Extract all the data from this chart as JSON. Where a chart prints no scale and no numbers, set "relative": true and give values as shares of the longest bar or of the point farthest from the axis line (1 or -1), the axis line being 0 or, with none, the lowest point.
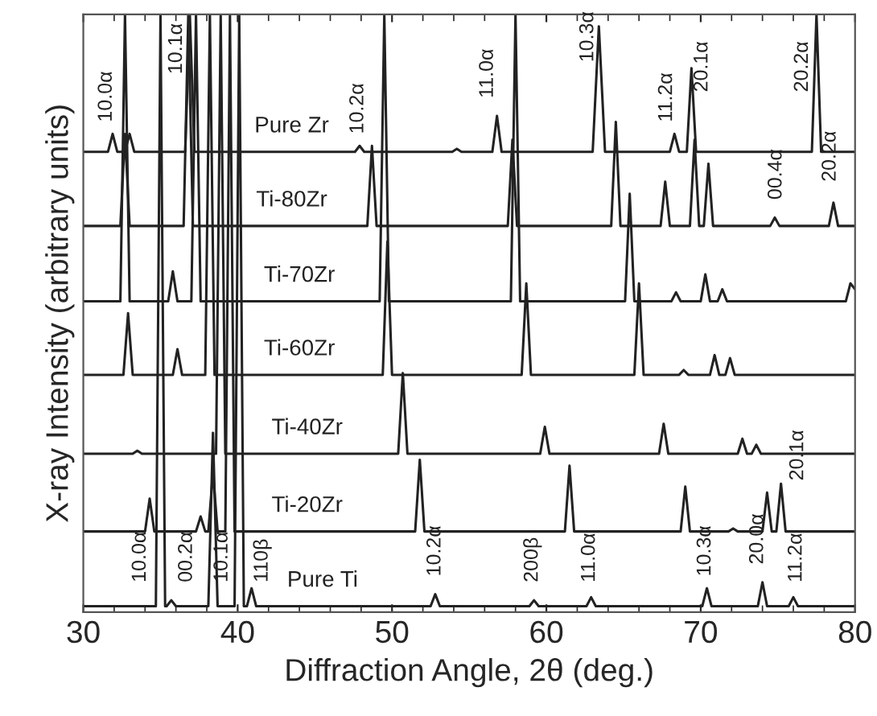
{
  "chart_data": {
    "type": "line",
    "relative": true,
    "xlabel": "Diffraction Angle, 2θ (deg.)",
    "ylabel": "X-ray Intensity (arbitrary units)",
    "xlim": [
      30,
      80
    ],
    "xticks": [
      30,
      40,
      50,
      60,
      70,
      80
    ],
    "tick_labels": "x",
    "grid": false,
    "legend": false,
    "marker": "none",
    "line_style": "solid",
    "series": [
      {
        "name": "Pure Zr",
        "color": "#222222",
        "x": [
          30,
          31.6,
          31.9,
          32.2,
          32.7,
          33.0,
          33.3,
          36.6,
          36.9,
          37.2,
          47.6,
          47.9,
          48.2,
          53.9,
          54.2,
          54.5,
          56.5,
          56.8,
          57.1,
          63.0,
          63.4,
          63.8,
          68.0,
          68.3,
          68.6,
          69.1,
          69.4,
          69.7,
          77.2,
          77.5,
          77.8,
          80
        ],
        "values": [
          0.77,
          0.77,
          0.8,
          0.77,
          0.77,
          0.8,
          0.77,
          0.77,
          1.0,
          0.77,
          0.77,
          0.78,
          0.77,
          0.77,
          0.775,
          0.77,
          0.77,
          0.83,
          0.77,
          0.77,
          0.98,
          0.77,
          0.77,
          0.8,
          0.77,
          0.77,
          0.91,
          0.77,
          0.77,
          1.0,
          0.77,
          0.77
        ]
      },
      {
        "name": "Ti-80Zr",
        "color": "#222222",
        "x": [
          30,
          32.4,
          32.7,
          33.0,
          36.5,
          36.8,
          37.1,
          48.4,
          48.7,
          49.0,
          57.5,
          57.8,
          58.1,
          64.2,
          64.5,
          64.8,
          67.4,
          67.7,
          68.0,
          69.3,
          69.6,
          69.9,
          70.2,
          70.5,
          70.8,
          74.5,
          74.8,
          75.1,
          78.3,
          78.6,
          78.9,
          80
        ],
        "values": [
          0.646,
          0.646,
          0.8,
          0.646,
          0.646,
          1.0,
          0.646,
          0.646,
          0.78,
          0.646,
          0.646,
          0.79,
          0.646,
          0.646,
          0.82,
          0.646,
          0.646,
          0.72,
          0.646,
          0.646,
          0.79,
          0.646,
          0.646,
          0.75,
          0.646,
          0.646,
          0.66,
          0.646,
          0.646,
          0.685,
          0.646,
          0.646
        ]
      },
      {
        "name": "Ti-70Zr",
        "color": "#222222",
        "x": [
          30,
          32.4,
          32.7,
          33.0,
          35.5,
          35.8,
          36.1,
          37.0,
          37.3,
          37.6,
          49.2,
          49.5,
          49.8,
          57.7,
          58.0,
          58.3,
          65.1,
          65.4,
          65.7,
          68.1,
          68.4,
          68.7,
          70.0,
          70.3,
          70.6,
          71.1,
          71.4,
          71.7,
          79.4,
          79.7,
          80
        ],
        "values": [
          0.52,
          0.52,
          1.0,
          0.52,
          0.52,
          0.57,
          0.52,
          0.52,
          1.0,
          0.52,
          0.52,
          1.0,
          0.52,
          0.52,
          1.0,
          0.52,
          0.52,
          0.7,
          0.52,
          0.52,
          0.535,
          0.52,
          0.52,
          0.565,
          0.52,
          0.52,
          0.54,
          0.52,
          0.52,
          0.55,
          0.54
        ]
      },
      {
        "name": "Ti-60Zr",
        "color": "#222222",
        "x": [
          30,
          32.6,
          32.9,
          33.2,
          35.8,
          36.1,
          36.4,
          37.9,
          38.2,
          38.5,
          49.4,
          49.7,
          50.0,
          58.4,
          58.7,
          59.0,
          65.7,
          66.0,
          66.3,
          68.6,
          68.9,
          69.2,
          70.6,
          70.9,
          71.2,
          71.6,
          71.9,
          72.2,
          80
        ],
        "values": [
          0.397,
          0.397,
          0.5,
          0.397,
          0.397,
          0.44,
          0.397,
          0.397,
          1.0,
          0.397,
          0.397,
          0.62,
          0.397,
          0.397,
          0.55,
          0.397,
          0.397,
          0.55,
          0.397,
          0.397,
          0.405,
          0.397,
          0.397,
          0.43,
          0.397,
          0.397,
          0.425,
          0.397,
          0.397
        ]
      },
      {
        "name": "Ti-40Zr",
        "color": "#222222",
        "x": [
          30,
          33.2,
          33.5,
          33.8,
          38.6,
          38.9,
          39.2,
          50.4,
          50.7,
          51.0,
          59.6,
          59.9,
          60.2,
          67.3,
          67.6,
          67.9,
          72.4,
          72.7,
          73.0,
          73.3,
          73.6,
          73.9,
          80
        ],
        "values": [
          0.265,
          0.265,
          0.27,
          0.265,
          0.265,
          1.0,
          0.265,
          0.265,
          0.4,
          0.265,
          0.265,
          0.31,
          0.265,
          0.265,
          0.315,
          0.265,
          0.265,
          0.29,
          0.265,
          0.265,
          0.28,
          0.265,
          0.265
        ]
      },
      {
        "name": "Ti-20Zr",
        "color": "#222222",
        "x": [
          30,
          34.0,
          34.3,
          34.6,
          37.3,
          37.6,
          37.9,
          38.1,
          38.4,
          38.7,
          39.2,
          39.5,
          39.8,
          51.5,
          51.8,
          52.1,
          61.2,
          61.5,
          61.8,
          68.7,
          69.0,
          69.3,
          71.8,
          72.1,
          72.4,
          74.0,
          74.3,
          74.6,
          74.9,
          75.2,
          75.5,
          80
        ],
        "values": [
          0.135,
          0.135,
          0.19,
          0.135,
          0.135,
          0.16,
          0.135,
          0.135,
          0.235,
          0.135,
          0.135,
          1.0,
          0.135,
          0.135,
          0.255,
          0.135,
          0.135,
          0.245,
          0.135,
          0.135,
          0.21,
          0.135,
          0.135,
          0.14,
          0.135,
          0.135,
          0.2,
          0.135,
          0.135,
          0.215,
          0.135,
          0.135
        ]
      },
      {
        "name": "Pure Ti",
        "color": "#222222",
        "x": [
          30,
          34.7,
          35.0,
          35.3,
          35.4,
          35.7,
          36.0,
          38.1,
          38.4,
          38.7,
          39.8,
          40.1,
          40.4,
          40.6,
          40.9,
          41.2,
          52.5,
          52.8,
          53.1,
          58.9,
          59.2,
          59.5,
          62.6,
          62.9,
          63.2,
          70.1,
          70.4,
          70.7,
          73.7,
          74.0,
          74.3,
          75.7,
          76.0,
          76.3,
          80
        ],
        "values": [
          0.01,
          0.01,
          1.0,
          0.01,
          0.01,
          0.02,
          0.01,
          0.01,
          0.3,
          0.01,
          0.01,
          1.0,
          0.01,
          0.01,
          0.04,
          0.01,
          0.01,
          0.03,
          0.01,
          0.01,
          0.02,
          0.01,
          0.01,
          0.025,
          0.01,
          0.01,
          0.04,
          0.01,
          0.01,
          0.05,
          0.01,
          0.01,
          0.025,
          0.01,
          0.01
        ]
      }
    ],
    "annotations": [
      "10.0α",
      "10.1α",
      "10.2α",
      "11.0α",
      "10.3α",
      "11.2α",
      "20.1α",
      "20.2α",
      "00.4α",
      "20.2α",
      "20.1α",
      "10.0α",
      "00.2α",
      "10.1α",
      "110β",
      "10.2α",
      "200β",
      "11.0α",
      "10.3α",
      "20.0α",
      "11.2α"
    ]
  }
}
